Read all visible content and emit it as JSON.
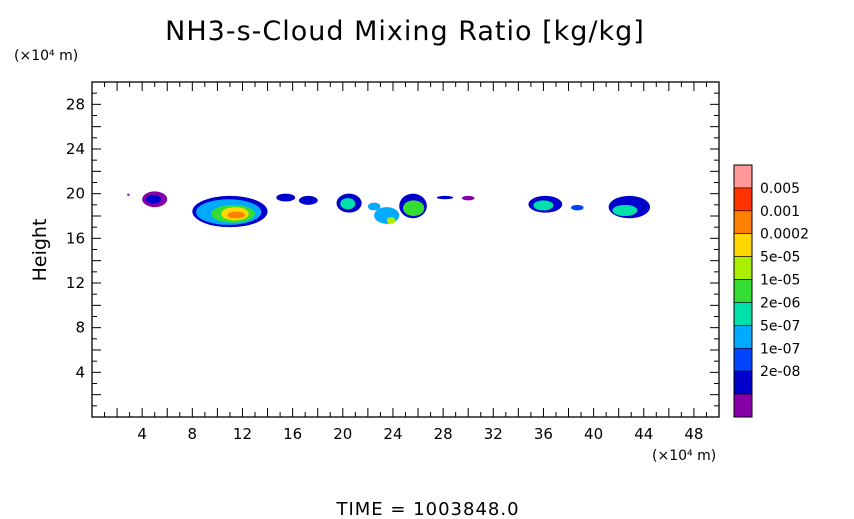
{
  "chart_data": {
    "type": "heatmap",
    "title": "NH3-s-Cloud Mixing Ratio [kg/kg]",
    "xunit": "(×10⁴ m)",
    "yunit": "(×10⁴ m)",
    "ylabel": "Height",
    "xlim": [
      0,
      50
    ],
    "ylim": [
      0,
      30
    ],
    "xticks": [
      4,
      8,
      12,
      16,
      20,
      24,
      28,
      32,
      36,
      40,
      44,
      48
    ],
    "yticks": [
      4,
      8,
      12,
      16,
      20,
      24,
      28
    ],
    "legend": {
      "placement": "right",
      "labels": [
        "0.005",
        "0.001",
        "0.0002",
        "5e-05",
        "1e-05",
        "2e-06",
        "5e-07",
        "1e-07",
        "2e-08"
      ],
      "colors": [
        "#ff9999",
        "#ff3300",
        "#ff7f00",
        "#ffd700",
        "#aaee00",
        "#33dd33",
        "#00e0aa",
        "#00aaff",
        "#0044ff",
        "#0000cc",
        "#8800aa"
      ]
    },
    "blobs": [
      {
        "x": [
          2.8,
          3.0
        ],
        "y": [
          19.8,
          20.0
        ],
        "level": 10
      },
      {
        "x": [
          4.0,
          6.0
        ],
        "y": [
          18.8,
          20.2
        ],
        "level": 10
      },
      {
        "x": [
          4.3,
          5.5
        ],
        "y": [
          19.1,
          19.9
        ],
        "level": 9
      },
      {
        "x": [
          8.0,
          14.0
        ],
        "y": [
          17.0,
          19.8
        ],
        "level": 9
      },
      {
        "x": [
          8.3,
          13.5
        ],
        "y": [
          17.2,
          19.5
        ],
        "level": 7
      },
      {
        "x": [
          9.5,
          13.0
        ],
        "y": [
          17.4,
          19.0
        ],
        "level": 5
      },
      {
        "x": [
          10.3,
          12.5
        ],
        "y": [
          17.6,
          18.8
        ],
        "level": 3
      },
      {
        "x": [
          10.8,
          12.2
        ],
        "y": [
          17.8,
          18.4
        ],
        "level": 2
      },
      {
        "x": [
          14.7,
          16.2
        ],
        "y": [
          19.3,
          20.0
        ],
        "level": 9
      },
      {
        "x": [
          16.5,
          18.0
        ],
        "y": [
          19.0,
          19.8
        ],
        "level": 9
      },
      {
        "x": [
          19.5,
          21.5
        ],
        "y": [
          18.3,
          20.0
        ],
        "level": 9
      },
      {
        "x": [
          19.8,
          21.0
        ],
        "y": [
          18.6,
          19.6
        ],
        "level": 6
      },
      {
        "x": [
          22.0,
          23.0
        ],
        "y": [
          18.5,
          19.2
        ],
        "level": 7
      },
      {
        "x": [
          22.5,
          24.5
        ],
        "y": [
          17.3,
          18.8
        ],
        "level": 7
      },
      {
        "x": [
          23.5,
          24.2
        ],
        "y": [
          17.3,
          17.9
        ],
        "level": 4
      },
      {
        "x": [
          24.5,
          26.7
        ],
        "y": [
          17.8,
          20.0
        ],
        "level": 9
      },
      {
        "x": [
          24.8,
          26.5
        ],
        "y": [
          18.0,
          19.4
        ],
        "level": 5
      },
      {
        "x": [
          27.5,
          28.8
        ],
        "y": [
          19.5,
          19.8
        ],
        "level": 9
      },
      {
        "x": [
          29.5,
          30.5
        ],
        "y": [
          19.4,
          19.8
        ],
        "level": 10
      },
      {
        "x": [
          34.8,
          37.5
        ],
        "y": [
          18.3,
          19.8
        ],
        "level": 9
      },
      {
        "x": [
          35.2,
          36.8
        ],
        "y": [
          18.5,
          19.4
        ],
        "level": 6
      },
      {
        "x": [
          38.2,
          39.2
        ],
        "y": [
          18.5,
          19.0
        ],
        "level": 8
      },
      {
        "x": [
          41.2,
          44.5
        ],
        "y": [
          17.8,
          19.8
        ],
        "level": 9
      },
      {
        "x": [
          41.5,
          43.5
        ],
        "y": [
          18.0,
          19.0
        ],
        "level": 6
      }
    ],
    "footer": "TIME = 1003848.0"
  }
}
